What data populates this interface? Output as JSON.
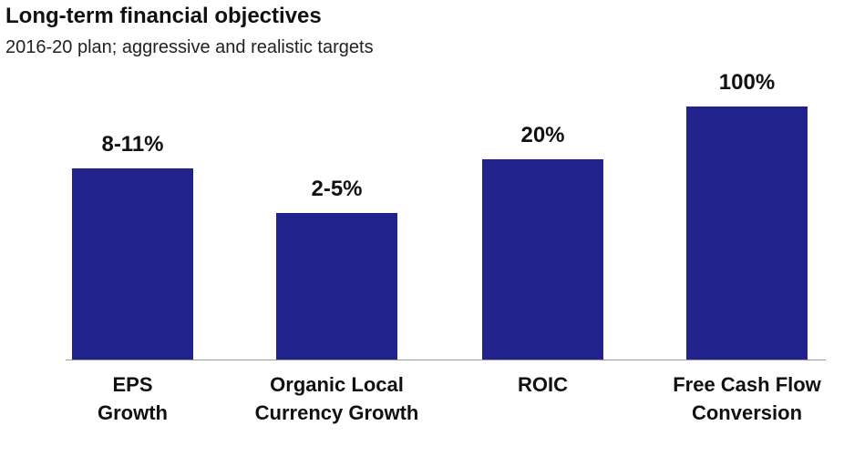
{
  "chart_data": {
    "type": "bar",
    "title": "Long-term financial objectives",
    "subtitle": "2016-20 plan; aggressive and realistic targets",
    "categories": [
      "EPS Growth",
      "Organic Local Currency Growth",
      "ROIC",
      "Free Cash Flow Conversion"
    ],
    "value_labels": [
      "8-11%",
      "2-5%",
      "20%",
      "100%"
    ],
    "color": "#22228c"
  }
}
